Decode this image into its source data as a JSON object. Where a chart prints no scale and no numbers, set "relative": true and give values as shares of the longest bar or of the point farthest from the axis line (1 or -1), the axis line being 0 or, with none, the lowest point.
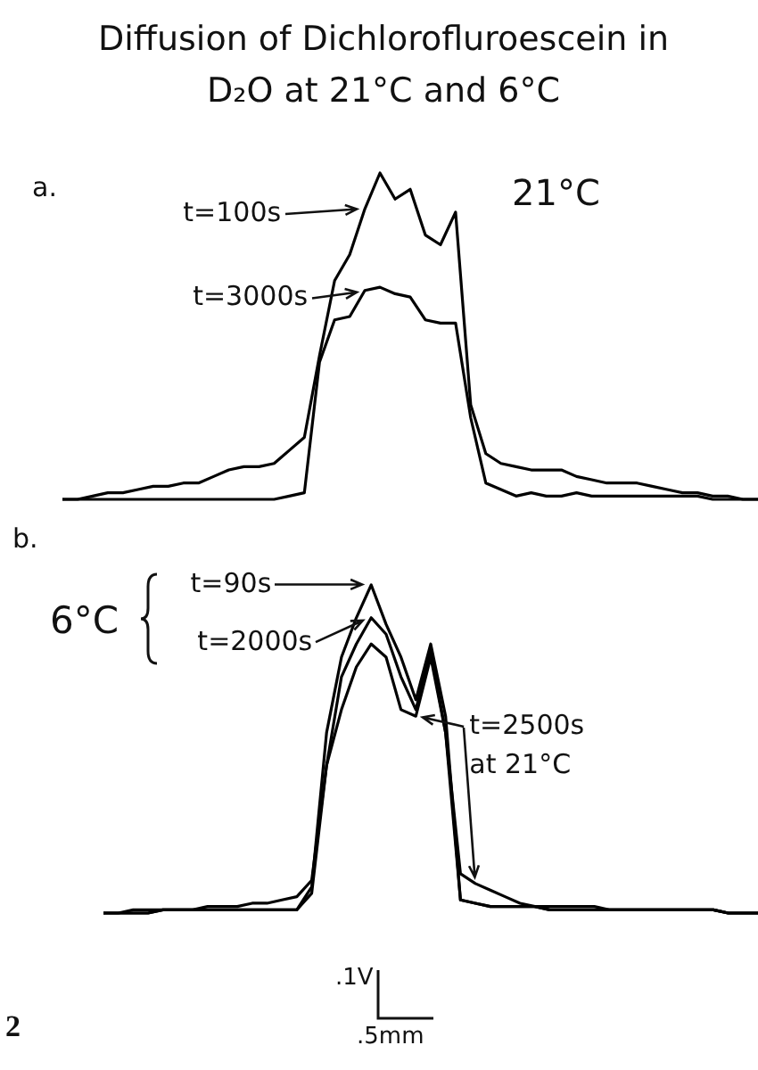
{
  "chart_data": [
    {
      "type": "line",
      "title": "Diffusion of Dichlorofluroescein in D₂O at 21°C and 6°C",
      "relative": true,
      "legend": false,
      "marker": "none",
      "line_style": "solid",
      "categories": [
        null,
        null,
        null,
        null,
        null,
        null,
        null,
        null,
        null,
        null,
        null,
        null,
        null,
        null,
        null,
        null,
        null,
        null,
        null,
        null,
        null,
        null,
        null,
        null,
        null,
        null,
        null,
        null,
        null,
        null,
        null,
        null,
        null,
        null,
        null,
        null,
        null,
        null,
        null,
        null,
        null,
        null,
        null,
        null,
        null,
        null,
        null
      ],
      "series": [
        {
          "name": "t=100s",
          "color": "#000000",
          "values": [
            0,
            0,
            0.01,
            0.02,
            0.02,
            0.03,
            0.04,
            0.04,
            0.05,
            0.05,
            0.07,
            0.09,
            0.1,
            0.1,
            0.11,
            0.15,
            0.19,
            0.44,
            0.67,
            0.75,
            0.89,
            1,
            0.92,
            0.95,
            0.81,
            0.78,
            0.88,
            0.29,
            0.14,
            0.11,
            0.1,
            0.09,
            0.09,
            0.09,
            0.07,
            0.06,
            0.05,
            0.05,
            0.05,
            0.04,
            0.03,
            0.02,
            0.02,
            0.01,
            0.01,
            0,
            0
          ]
        },
        {
          "name": "t=3000s",
          "color": "#000000",
          "values": [
            0,
            0,
            0,
            0,
            0,
            0,
            0,
            0,
            0,
            0,
            0,
            0,
            0,
            0,
            0,
            0.01,
            0.02,
            0.42,
            0.55,
            0.56,
            0.64,
            0.65,
            0.63,
            0.62,
            0.55,
            0.54,
            0.54,
            0.25,
            0.05,
            0.03,
            0.01,
            0.02,
            0.01,
            0.01,
            0.02,
            0.01,
            0.01,
            0.01,
            0.01,
            0.01,
            0.01,
            0.01,
            0.01,
            0,
            0,
            0,
            0
          ]
        }
      ],
      "annotations": [
        "a.",
        "21°C"
      ]
    },
    {
      "type": "line",
      "relative": true,
      "legend": false,
      "marker": "none",
      "line_style": "solid",
      "categories": [
        null,
        null,
        null,
        null,
        null,
        null,
        null,
        null,
        null,
        null,
        null,
        null,
        null,
        null,
        null,
        null,
        null,
        null,
        null,
        null,
        null,
        null,
        null,
        null,
        null,
        null,
        null,
        null,
        null,
        null,
        null,
        null,
        null,
        null,
        null,
        null,
        null,
        null,
        null,
        null,
        null,
        null,
        null,
        null,
        null
      ],
      "series": [
        {
          "name": "t=90s",
          "color": "#000000",
          "values": [
            0,
            0,
            0,
            0,
            0.01,
            0.01,
            0.01,
            0.01,
            0.01,
            0.01,
            0.01,
            0.01,
            0.01,
            0.01,
            0.08,
            0.55,
            0.78,
            0.9,
            1,
            0.88,
            0.78,
            0.65,
            0.82,
            0.6,
            0.04,
            0.03,
            0.02,
            0.02,
            0.02,
            0.02,
            0.01,
            0.01,
            0.01,
            0.01,
            0.01,
            0.01,
            0.01,
            0.01,
            0.01,
            0.01,
            0.01,
            0.01,
            0,
            0,
            0
          ]
        },
        {
          "name": "t=2000s",
          "color": "#000000",
          "values": [
            0,
            0,
            0,
            0,
            0.01,
            0.01,
            0.01,
            0.01,
            0.01,
            0.01,
            0.01,
            0.01,
            0.01,
            0.01,
            0.06,
            0.45,
            0.72,
            0.82,
            0.9,
            0.85,
            0.72,
            0.62,
            0.8,
            0.55,
            0.04,
            0.03,
            0.02,
            0.02,
            0.02,
            0.02,
            0.01,
            0.01,
            0.01,
            0.01,
            0.01,
            0.01,
            0.01,
            0.01,
            0.01,
            0.01,
            0.01,
            0.01,
            0,
            0,
            0
          ]
        },
        {
          "name": "t=2500s at 21°C",
          "color": "#000000",
          "values": [
            0,
            0,
            0.01,
            0.01,
            0.01,
            0.01,
            0.01,
            0.02,
            0.02,
            0.02,
            0.03,
            0.03,
            0.04,
            0.05,
            0.1,
            0.45,
            0.62,
            0.75,
            0.82,
            0.78,
            0.62,
            0.6,
            0.78,
            0.55,
            0.12,
            0.09,
            0.07,
            0.05,
            0.03,
            0.02,
            0.02,
            0.02,
            0.02,
            0.02,
            0.01,
            0.01,
            0.01,
            0.01,
            0.01,
            0.01,
            0.01,
            0.01,
            0,
            0,
            0
          ]
        }
      ],
      "annotations": [
        "b.",
        "6°C",
        ".1V",
        ".5mm",
        "2"
      ]
    }
  ]
}
